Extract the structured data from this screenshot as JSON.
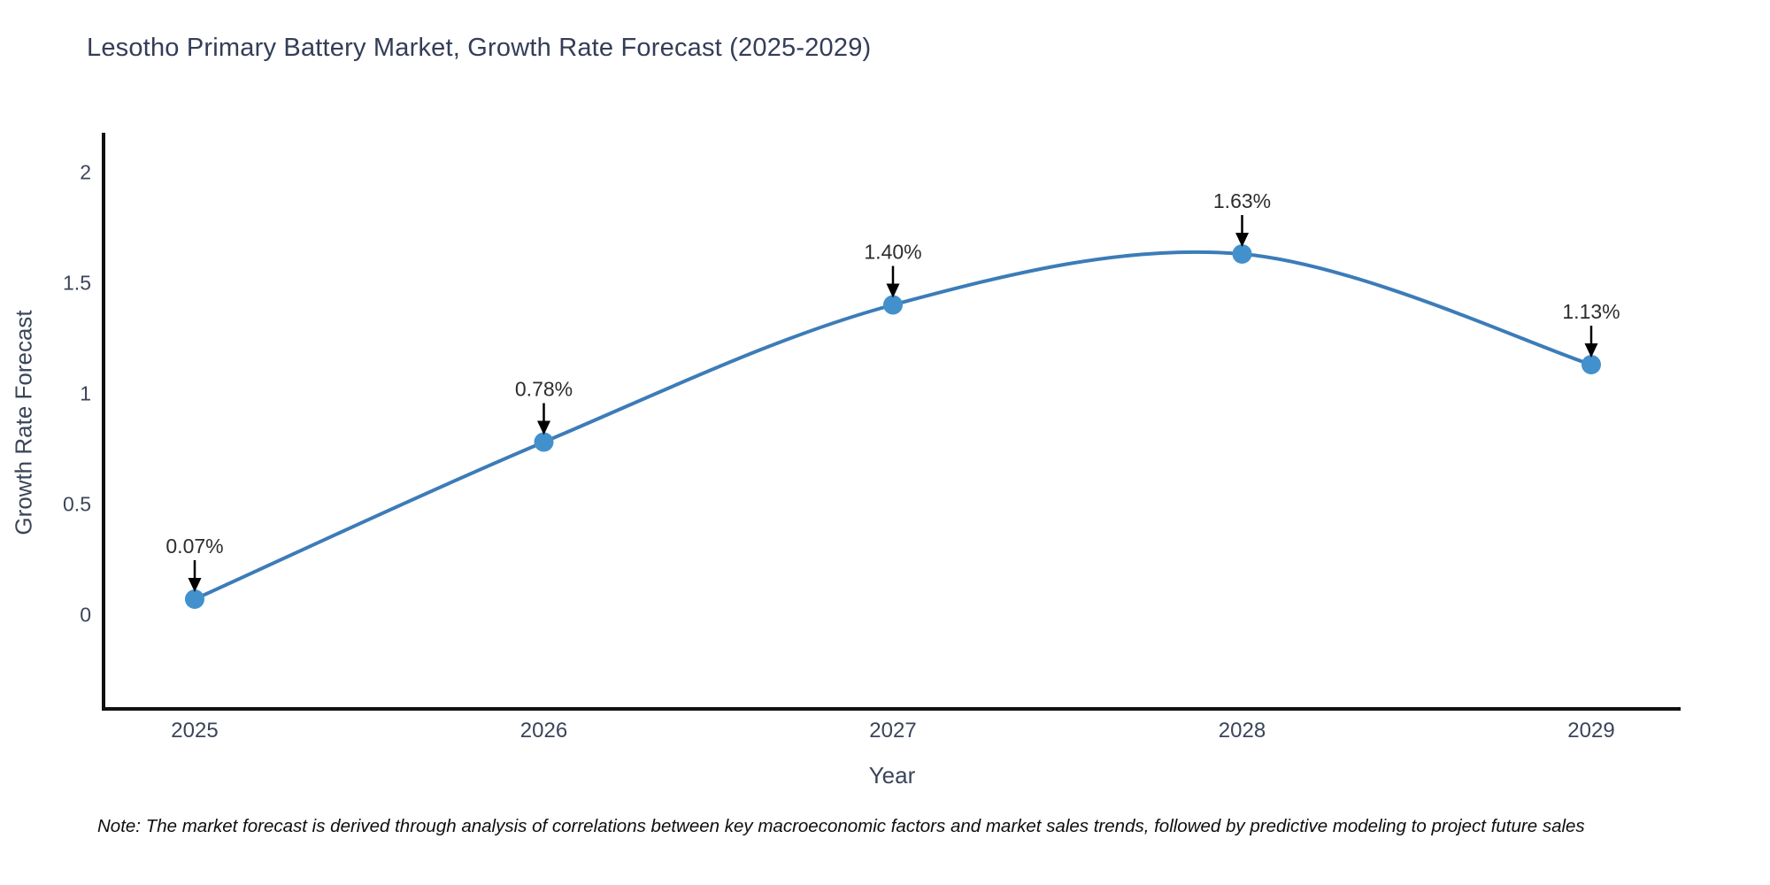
{
  "title": "Lesotho Primary Battery Market, Growth Rate Forecast (2025-2029)",
  "note": "Note: The market forecast is derived through analysis of correlations between key macroeconomic factors and market sales trends, followed by predictive modeling to project future sales",
  "chart_data": {
    "type": "line",
    "title": "Lesotho Primary Battery Market, Growth Rate Forecast (2025-2029)",
    "xlabel": "Year",
    "ylabel": "Growth Rate Forecast",
    "x": [
      "2025",
      "2026",
      "2027",
      "2028",
      "2029"
    ],
    "series": [
      {
        "name": "Growth Rate Forecast",
        "values": [
          0.07,
          0.78,
          1.4,
          1.63,
          1.13
        ]
      }
    ],
    "point_labels": [
      "0.07%",
      "0.78%",
      "1.40%",
      "1.63%",
      "1.13%"
    ],
    "y_ticks": [
      {
        "label": "2",
        "value": 2.0
      },
      {
        "label": "1.5",
        "value": 1.5
      },
      {
        "label": "1",
        "value": 1.0
      },
      {
        "label": "0.5",
        "value": 0.5
      },
      {
        "label": "0",
        "value": 0.0
      }
    ],
    "ylim": [
      -0.43,
      2.17
    ],
    "grid": false,
    "legend": "none",
    "line_shape": "spline",
    "colors": {
      "line": "#3c7cb8",
      "marker": "#4291cd",
      "annotation_text": "#2d2d2d",
      "annotation_arrow": "#000000",
      "axis": "#111111",
      "title_text": "#343d58",
      "tick_text": "#3b4559"
    }
  }
}
